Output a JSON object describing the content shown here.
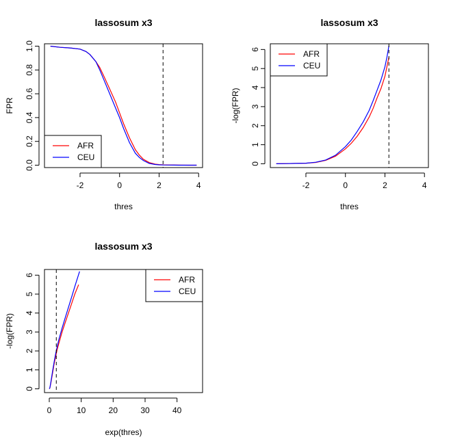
{
  "chart_data": [
    {
      "type": "line",
      "title": "lassosum x3",
      "xlabel": "thres",
      "ylabel": "FPR",
      "xlim": [
        -3.8,
        4.2
      ],
      "ylim": [
        -0.02,
        1.02
      ],
      "xticks": [
        "-2",
        "0",
        "2",
        "4"
      ],
      "yticks": [
        "0.0",
        "0.2",
        "0.4",
        "0.6",
        "0.8",
        "1.0"
      ],
      "vline": 2.2,
      "legend": "bottom-left",
      "series": [
        {
          "name": "AFR",
          "color": "#ff0000",
          "x": [
            -3.5,
            -3,
            -2.5,
            -2,
            -1.7,
            -1.5,
            -1.2,
            -1,
            -0.8,
            -0.5,
            -0.2,
            0,
            0.2,
            0.5,
            0.8,
            1,
            1.2,
            1.5,
            1.8,
            2,
            2.2,
            2.5,
            3,
            3.5,
            3.9
          ],
          "y": [
            1.0,
            0.99,
            0.985,
            0.975,
            0.955,
            0.93,
            0.87,
            0.82,
            0.75,
            0.64,
            0.53,
            0.44,
            0.35,
            0.23,
            0.13,
            0.085,
            0.05,
            0.022,
            0.009,
            0.005,
            0.003,
            0.002,
            0.001,
            0.0,
            0.0
          ]
        },
        {
          "name": "CEU",
          "color": "#0000ff",
          "x": [
            -3.5,
            -3,
            -2.5,
            -2,
            -1.7,
            -1.5,
            -1.2,
            -1,
            -0.8,
            -0.5,
            -0.2,
            0,
            0.2,
            0.5,
            0.8,
            1,
            1.2,
            1.5,
            1.8,
            2,
            2.2,
            2.5,
            3,
            3.5,
            3.9
          ],
          "y": [
            1.0,
            0.99,
            0.985,
            0.975,
            0.955,
            0.93,
            0.87,
            0.8,
            0.72,
            0.6,
            0.48,
            0.4,
            0.31,
            0.19,
            0.1,
            0.065,
            0.04,
            0.015,
            0.006,
            0.003,
            0.002,
            0.001,
            0.0,
            0.0,
            0.0
          ]
        }
      ]
    },
    {
      "type": "line",
      "title": "lassosum x3",
      "xlabel": "thres",
      "ylabel": "-log(FPR)",
      "xlim": [
        -3.8,
        4.2
      ],
      "ylim": [
        -0.2,
        6.3
      ],
      "xticks": [
        "-2",
        "0",
        "2",
        "4"
      ],
      "yticks": [
        "0",
        "1",
        "2",
        "3",
        "4",
        "5",
        "6"
      ],
      "vline": 2.2,
      "legend": "top-left",
      "series": [
        {
          "name": "AFR",
          "color": "#ff0000",
          "x": [
            -3.5,
            -3,
            -2.5,
            -2,
            -1.5,
            -1,
            -0.5,
            0,
            0.3,
            0.6,
            0.9,
            1.2,
            1.4,
            1.6,
            1.8,
            2.0,
            2.1,
            2.2
          ],
          "y": [
            0.0,
            0.01,
            0.02,
            0.03,
            0.07,
            0.18,
            0.4,
            0.78,
            1.08,
            1.45,
            1.9,
            2.45,
            2.9,
            3.45,
            3.95,
            4.6,
            5.1,
            5.6
          ]
        },
        {
          "name": "CEU",
          "color": "#0000ff",
          "x": [
            -3.5,
            -3,
            -2.5,
            -2,
            -1.5,
            -1,
            -0.5,
            0,
            0.3,
            0.6,
            0.9,
            1.2,
            1.4,
            1.6,
            1.8,
            2.0,
            2.1,
            2.2
          ],
          "y": [
            0.0,
            0.01,
            0.02,
            0.03,
            0.08,
            0.2,
            0.45,
            0.9,
            1.25,
            1.7,
            2.2,
            2.8,
            3.3,
            3.85,
            4.4,
            5.1,
            5.6,
            6.2
          ]
        }
      ]
    },
    {
      "type": "line",
      "title": "lassosum x3",
      "xlabel": "exp(thres)",
      "ylabel": "-log(FPR)",
      "xlim": [
        -1.5,
        48
      ],
      "ylim": [
        -0.2,
        6.3
      ],
      "xticks": [
        "0",
        "10",
        "20",
        "30",
        "40"
      ],
      "yticks": [
        "0",
        "1",
        "2",
        "3",
        "4",
        "5",
        "6"
      ],
      "vline": 2.2,
      "legend": "top-right",
      "series": [
        {
          "name": "AFR",
          "color": "#ff0000",
          "x": [
            0.03,
            0.2,
            0.5,
            1,
            1.5,
            2,
            2.5,
            3,
            4,
            5,
            6,
            7,
            8,
            9.2
          ],
          "y": [
            0.0,
            0.05,
            0.3,
            0.8,
            1.3,
            1.7,
            2.1,
            2.4,
            3.0,
            3.5,
            4.0,
            4.5,
            5.0,
            5.5
          ]
        },
        {
          "name": "CEU",
          "color": "#0000ff",
          "x": [
            0.03,
            0.2,
            0.5,
            1,
            1.5,
            2,
            2.5,
            3,
            4,
            5,
            6,
            7,
            8,
            9.5
          ],
          "y": [
            0.0,
            0.06,
            0.35,
            0.9,
            1.4,
            1.85,
            2.25,
            2.6,
            3.2,
            3.75,
            4.3,
            4.85,
            5.4,
            6.2
          ]
        }
      ]
    }
  ]
}
